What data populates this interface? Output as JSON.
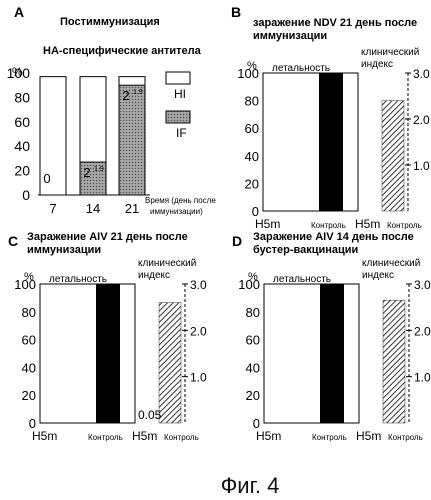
{
  "figure_caption": "Фиг. 4",
  "colors": {
    "black": "#000000",
    "gray_fill": "#8c8c8c",
    "hatch": "#333333",
    "frame": "#000000"
  },
  "chart_data": [
    {
      "panel": "A",
      "type": "bar",
      "title": "Постиммунизация",
      "subtitle": "НА-специфические антитела",
      "ylabel": "%",
      "xlabel": "Время (день после иммунизации)",
      "ylim": [
        0,
        100
      ],
      "yticks": [
        "0",
        "20",
        "40",
        "60",
        "80",
        "100"
      ],
      "categories": [
        "7",
        "14",
        "21"
      ],
      "series": [
        {
          "name": "HI",
          "values": [
            97,
            97,
            97
          ]
        },
        {
          "name": "IF",
          "values": [
            0,
            27,
            90
          ]
        }
      ],
      "bar_labels": [
        {
          "base": "0",
          "sup": ""
        },
        {
          "base": "2",
          "sup": "1.9"
        },
        {
          "base": "2",
          "sup": "1.9"
        }
      ],
      "legend": [
        "HI",
        "IF"
      ],
      "legend_position": "right"
    },
    {
      "panel": "B",
      "type": "bar",
      "title": "заражение NDV 21 день после иммунизации",
      "title_lines": [
        "заражение NDV 21 день после",
        "иммунизации"
      ],
      "left_label": "летальность",
      "right_label_lines": [
        "клинический",
        "индекс"
      ],
      "ylabel": "%",
      "ylim_left": [
        0,
        100
      ],
      "ylim_right": [
        0,
        3.0
      ],
      "yticks_left": [
        "0",
        "20",
        "40",
        "60",
        "80",
        "100"
      ],
      "yticks_right": [
        "1.0",
        "2.0",
        "3.0"
      ],
      "groups": [
        {
          "name": "летальность",
          "categories": [
            "H5m",
            "Контроль"
          ],
          "values": [
            0,
            100
          ],
          "axis": "left"
        },
        {
          "name": "клинический индекс",
          "categories": [
            "H5m",
            "Контроль"
          ],
          "values": [
            0,
            2.4
          ],
          "axis": "right"
        }
      ]
    },
    {
      "panel": "C",
      "type": "bar",
      "title": "Заражение AIV 21 день после иммунизации",
      "title_lines": [
        "Заражение AIV 21 день после",
        "иммунизации"
      ],
      "left_label": "летальность",
      "right_label_lines": [
        "клинический",
        "индекс"
      ],
      "ylabel": "%",
      "ylim_left": [
        0,
        100
      ],
      "ylim_right": [
        0,
        3.0
      ],
      "yticks_left": [
        "0",
        "20",
        "40",
        "60",
        "80",
        "100"
      ],
      "yticks_right": [
        "1.0",
        "2.0",
        "3.0"
      ],
      "value_annotation": "0.05",
      "groups": [
        {
          "name": "летальность",
          "categories": [
            "H5m",
            "Контроль"
          ],
          "values": [
            0,
            100
          ],
          "axis": "left"
        },
        {
          "name": "клинический индекс",
          "categories": [
            "H5m",
            "Контроль"
          ],
          "values": [
            0.05,
            2.6
          ],
          "axis": "right"
        }
      ]
    },
    {
      "panel": "D",
      "type": "bar",
      "title": "Заражение AIV 14 день после бустер-вакцинации",
      "title_lines": [
        "Заражение AIV 14 день после",
        "бустер-вакцинации"
      ],
      "left_label": "летальность",
      "right_label_lines": [
        "клинический",
        "индекс"
      ],
      "ylabel": "%",
      "ylim_left": [
        0,
        100
      ],
      "ylim_right": [
        0,
        3.0
      ],
      "yticks_left": [
        "0",
        "20",
        "40",
        "60",
        "80",
        "100"
      ],
      "yticks_right": [
        "1.0",
        "2.0",
        "3.0"
      ],
      "groups": [
        {
          "name": "летальность",
          "categories": [
            "H5m",
            "Контроль"
          ],
          "values": [
            0,
            100
          ],
          "axis": "left"
        },
        {
          "name": "клинический индекс",
          "categories": [
            "H5m",
            "Контроль"
          ],
          "values": [
            0,
            2.65
          ],
          "axis": "right"
        }
      ]
    }
  ]
}
